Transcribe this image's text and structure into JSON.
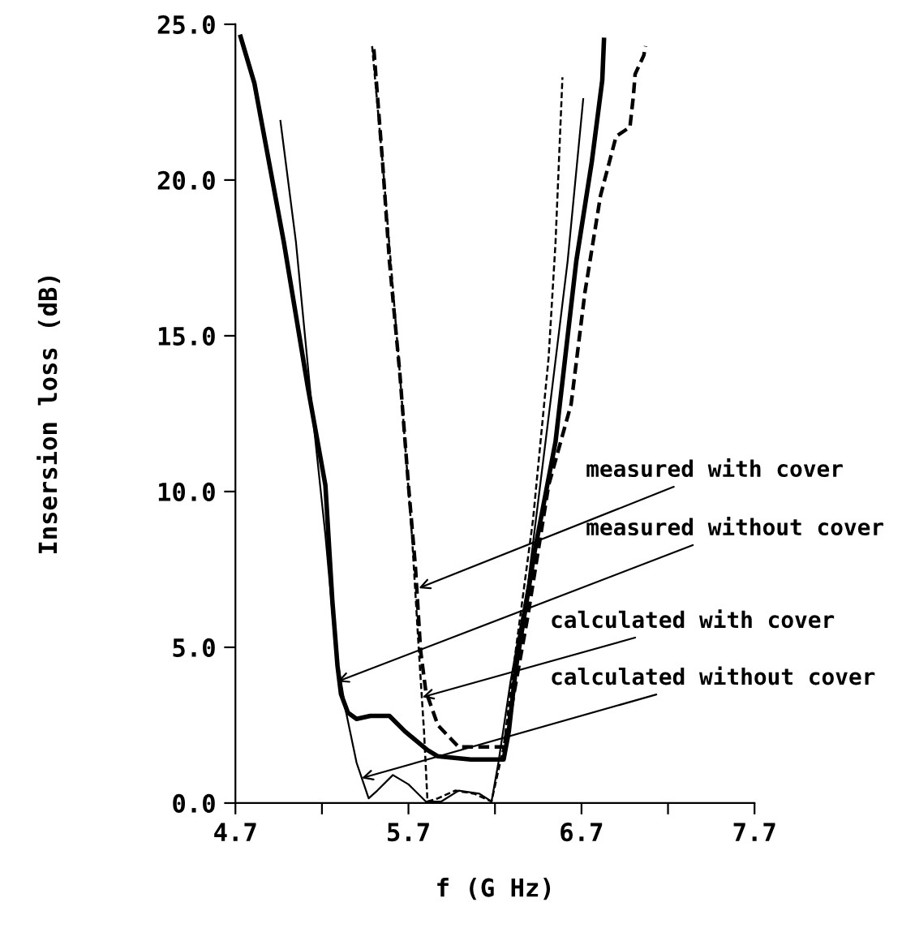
{
  "chart_data": {
    "type": "line",
    "xlabel": "f (G Hz)",
    "ylabel": "Insersion loss (dB)",
    "xlim": [
      4.7,
      7.7
    ],
    "ylim": [
      0,
      25
    ],
    "xticks": [
      4.7,
      {
        "value": 5.2,
        "label": null
      },
      5.7,
      {
        "value": 6.2,
        "label": null
      },
      6.7,
      {
        "value": 7.2,
        "label": null
      },
      7.7
    ],
    "yticks": [
      {
        "value": 0,
        "label": "0.0"
      },
      {
        "value": 5,
        "label": "5.0"
      },
      {
        "value": 10,
        "label": "10.0"
      },
      {
        "value": 15,
        "label": "15.0"
      },
      {
        "value": 20,
        "label": "20.0"
      },
      {
        "value": 25,
        "label": "25.0"
      }
    ],
    "grid": false,
    "legend": false,
    "marker": "none",
    "series": [
      {
        "color": "#000000",
        "line_style": "solid",
        "x": [
          4.73,
          4.81,
          4.98,
          5.12,
          5.22,
          5.26,
          5.29,
          5.31,
          5.35,
          5.4,
          5.48,
          5.59,
          5.68,
          5.81,
          5.87,
          6.06,
          6.25,
          6.28,
          6.32,
          6.43,
          6.55,
          6.67,
          6.76,
          6.82,
          6.83
        ],
        "values": [
          24.6,
          23.1,
          18.0,
          13.3,
          10.2,
          6.5,
          4.4,
          3.5,
          2.9,
          2.7,
          2.8,
          2.8,
          2.3,
          1.7,
          1.5,
          1.4,
          1.4,
          2.3,
          4.3,
          8.1,
          11.6,
          17.4,
          20.6,
          23.2,
          24.5
        ]
      },
      {
        "color": "#000000",
        "line_style": "dashed",
        "x": [
          5.5,
          5.55,
          5.59,
          5.65,
          5.7,
          5.74,
          5.77,
          5.8,
          5.87,
          5.99,
          6.15,
          6.25,
          6.29,
          6.39,
          6.51,
          6.64,
          6.72,
          6.81,
          6.9,
          6.98,
          7.0,
          7.01,
          7.06,
          7.07
        ],
        "values": [
          24.2,
          20.6,
          17.4,
          13.8,
          10.2,
          7.6,
          4.9,
          3.6,
          2.5,
          1.8,
          1.8,
          1.8,
          2.9,
          6.0,
          10.2,
          12.8,
          16.4,
          19.5,
          21.4,
          21.7,
          22.7,
          23.4,
          24.0,
          24.3
        ]
      },
      {
        "color": "#000000",
        "line_style": "solid",
        "x": [
          4.96,
          5.05,
          5.14,
          5.22,
          5.28,
          5.34,
          5.4,
          5.47,
          5.52,
          5.61,
          5.7,
          5.8,
          5.89,
          5.99,
          6.11,
          6.18,
          6.22,
          6.29,
          6.39,
          6.53,
          6.62,
          6.71
        ],
        "values": [
          21.9,
          18.0,
          12.8,
          8.6,
          4.9,
          2.9,
          1.3,
          0.15,
          0.4,
          0.9,
          0.6,
          0.05,
          0.05,
          0.4,
          0.3,
          0.05,
          1.3,
          3.9,
          7.0,
          13.3,
          17.4,
          22.6
        ]
      },
      {
        "color": "#000000",
        "line_style": "dashed",
        "x": [
          5.49,
          5.55,
          5.65,
          5.72,
          5.76,
          5.79,
          5.81,
          5.87,
          5.97,
          6.08,
          6.18,
          6.25,
          6.32,
          6.42,
          6.51,
          6.55,
          6.59
        ],
        "values": [
          24.3,
          20.6,
          13.8,
          8.6,
          4.9,
          2.3,
          0.05,
          0.15,
          0.4,
          0.3,
          0.05,
          1.8,
          4.9,
          9.1,
          14.3,
          18.0,
          23.3
        ]
      }
    ],
    "annotations": [
      {
        "text": "measured with cover",
        "x": 5.76,
        "y": 6.9
      },
      {
        "text": "measured without cover",
        "x": 5.29,
        "y": 3.9
      },
      {
        "text": "calculated with cover",
        "x": 5.78,
        "y": 3.4
      },
      {
        "text": "calculated without cover",
        "x": 5.43,
        "y": 0.8
      }
    ]
  }
}
